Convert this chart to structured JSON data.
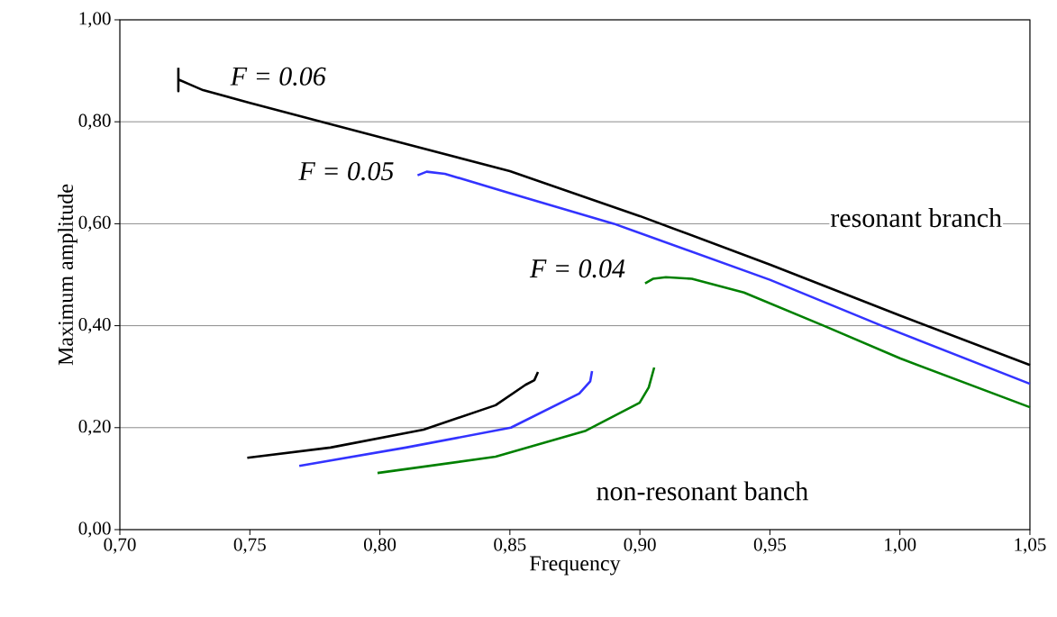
{
  "chart_data": {
    "type": "line",
    "xlabel": "Frequency",
    "ylabel": "Maximum amplitude",
    "xlim": [
      0.7,
      1.05
    ],
    "ylim": [
      0,
      1
    ],
    "xticks": [
      {
        "value": 0.7,
        "label": "0,70"
      },
      {
        "value": 0.75,
        "label": "0,75"
      },
      {
        "value": 0.8,
        "label": "0,80"
      },
      {
        "value": 0.85,
        "label": "0,85"
      },
      {
        "value": 0.9,
        "label": "0,90"
      },
      {
        "value": 0.95,
        "label": "0,95"
      },
      {
        "value": 1.0,
        "label": "1,00"
      },
      {
        "value": 1.05,
        "label": "1,05"
      }
    ],
    "yticks": [
      {
        "value": 0,
        "label": "0,00"
      },
      {
        "value": 0.2,
        "label": "0,20"
      },
      {
        "value": 0.4,
        "label": "0,40"
      },
      {
        "value": 0.6,
        "label": "0,60"
      },
      {
        "value": 0.8,
        "label": "0,80"
      },
      {
        "value": 1.0,
        "label": "1,00"
      }
    ],
    "grid": "y",
    "marker": "none",
    "line_style": "solid",
    "series": [
      {
        "color": "#000000",
        "x": [
          0.7225,
          0.7225,
          0.7225,
          0.727,
          0.732,
          0.75,
          0.7776,
          0.8,
          0.85,
          0.9,
          0.95,
          1.0,
          1.05
        ],
        "values": [
          0.906,
          0.86,
          0.883,
          0.873,
          0.862,
          0.837,
          0.8,
          0.77,
          0.703,
          0.615,
          0.52,
          0.42,
          0.323
        ]
      },
      {
        "color": "#3333ff",
        "x": [
          0.8145,
          0.818,
          0.825,
          0.85,
          0.89,
          0.95,
          0.993,
          1.05
        ],
        "values": [
          0.695,
          0.702,
          0.698,
          0.66,
          0.6,
          0.49,
          0.4,
          0.286
        ]
      },
      {
        "color": "#008000",
        "x": [
          0.902,
          0.905,
          0.91,
          0.92,
          0.94,
          0.9707,
          1.0,
          1.05
        ],
        "values": [
          0.483,
          0.492,
          0.495,
          0.492,
          0.465,
          0.4,
          0.336,
          0.24
        ]
      },
      {
        "color": "#000000",
        "x": [
          0.749,
          0.781,
          0.8168,
          0.8445,
          0.856,
          0.8594,
          0.8608
        ],
        "values": [
          0.141,
          0.161,
          0.196,
          0.244,
          0.284,
          0.293,
          0.309
        ]
      },
      {
        "color": "#3333ff",
        "x": [
          0.769,
          0.81,
          0.8504,
          0.8767,
          0.8809,
          0.8816
        ],
        "values": [
          0.125,
          0.161,
          0.2,
          0.267,
          0.291,
          0.311
        ]
      },
      {
        "color": "#008000",
        "x": [
          0.7991,
          0.8445,
          0.8792,
          0.8999,
          0.9034,
          0.9055
        ],
        "values": [
          0.111,
          0.143,
          0.194,
          0.249,
          0.279,
          0.318
        ]
      }
    ],
    "annotations": [
      "*F = 0.06*",
      "*F = 0.05*",
      "*F = 0.04*",
      "resonant branch",
      "non-resonant banch"
    ]
  }
}
